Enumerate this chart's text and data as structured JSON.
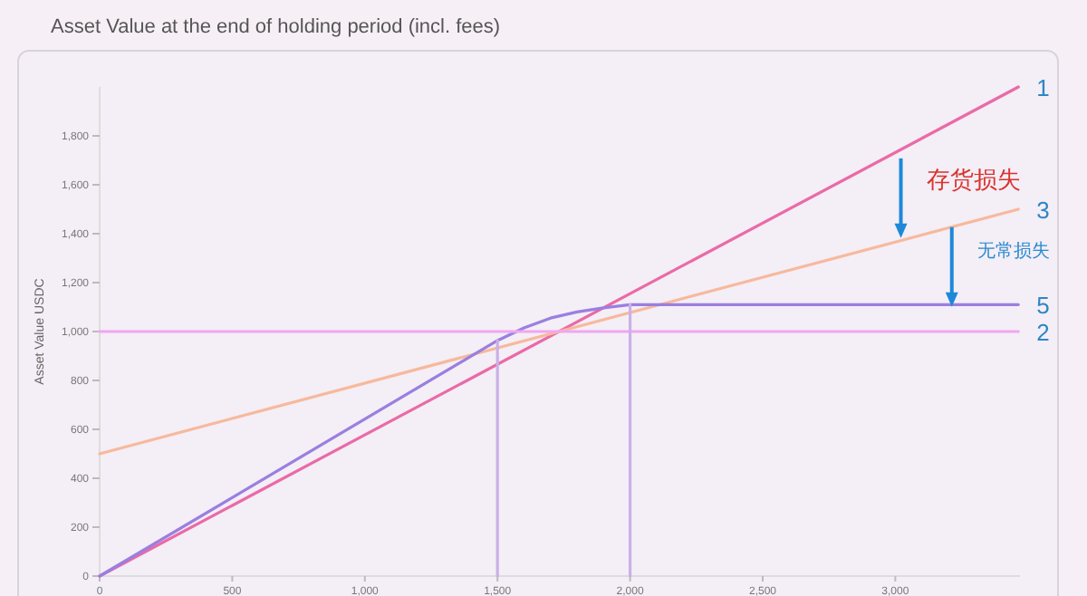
{
  "chart_data": {
    "type": "line",
    "title": "Asset Value at the end of holding period  (incl. fees)",
    "ylabel": "Asset Value USDC",
    "xlim": [
      0,
      3470
    ],
    "ylim": [
      0,
      2000
    ],
    "xticks": [
      0,
      500,
      {
        "value": 1000,
        "label": "1,000"
      },
      {
        "value": 1500,
        "label": "1,500"
      },
      {
        "value": 2000,
        "label": "2,000"
      },
      {
        "value": 2500,
        "label": "2,500"
      },
      {
        "value": 3000,
        "label": "3,000"
      }
    ],
    "yticks": [
      0,
      200,
      400,
      600,
      800,
      {
        "value": 1000,
        "label": "1,000"
      },
      {
        "value": 1200,
        "label": "1,200"
      },
      {
        "value": 1400,
        "label": "1,400"
      },
      {
        "value": 1600,
        "label": "1,600"
      },
      {
        "value": 1800,
        "label": "1,800"
      }
    ],
    "grid": false,
    "legend": false,
    "marker": "none",
    "line_style": "solid",
    "series": [
      {
        "name": "1",
        "color": "#ea6aa6",
        "x": [
          0,
          3464
        ],
        "values": [
          0,
          2000
        ]
      },
      {
        "name": "3",
        "color": "#f7b99c",
        "x": [
          0,
          3464
        ],
        "values": [
          500,
          1500
        ]
      },
      {
        "name": "5",
        "color": "#9a7fe0",
        "x": [
          0,
          500,
          1000,
          1500,
          1600,
          1700,
          1800,
          1900,
          2000,
          3464
        ],
        "values": [
          0,
          321,
          642,
          963,
          1015,
          1055,
          1080,
          1097,
          1110,
          1110
        ]
      },
      {
        "name": "2",
        "color": "#f0a6f0",
        "x": [
          0,
          3464
        ],
        "values": [
          1000,
          1000
        ]
      },
      {
        "color": "#cbb0e6",
        "x": [
          1500,
          1500
        ],
        "values": [
          0,
          963
        ]
      },
      {
        "color": "#cbb0e6",
        "x": [
          2000,
          2000
        ],
        "values": [
          0,
          1110
        ]
      }
    ],
    "annotations": [
      {
        "text": "存货损失",
        "x": 3021,
        "y": 1708
      },
      {
        "text": "无常损失",
        "x": 3213,
        "y": 1427
      }
    ]
  }
}
